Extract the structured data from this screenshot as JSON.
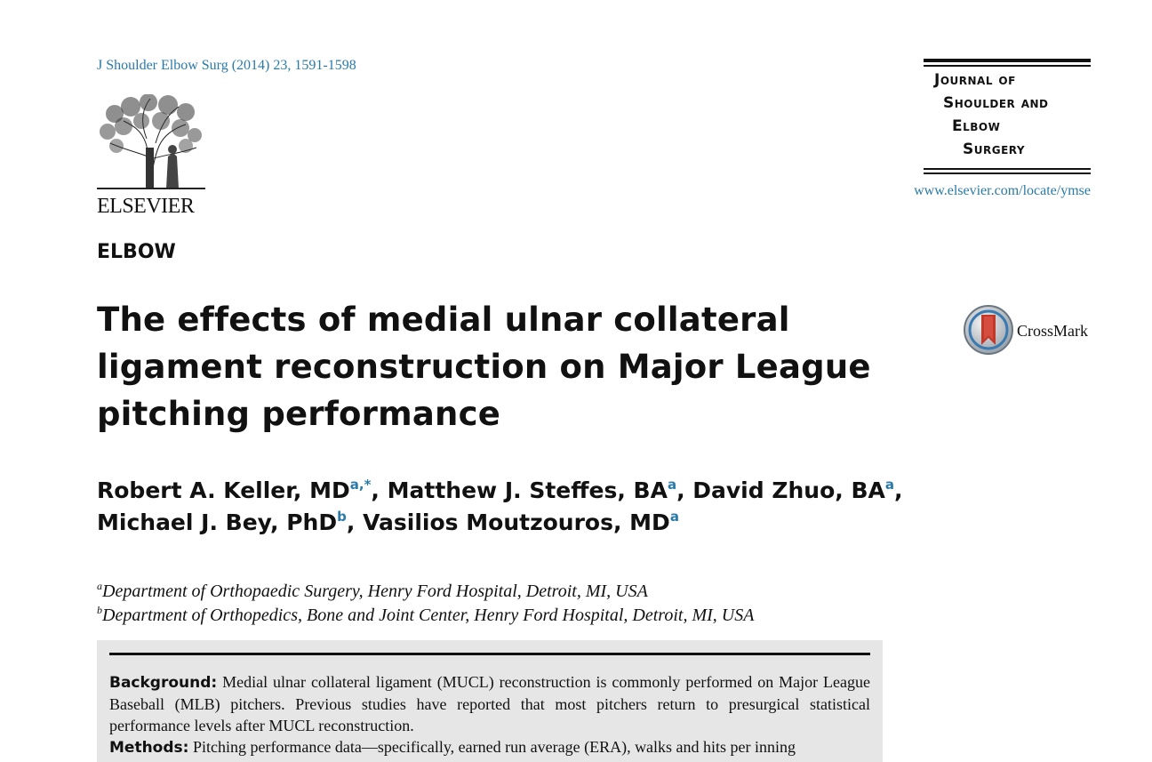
{
  "header": {
    "citation": "J Shoulder Elbow Surg (2014) 23, 1591-1598",
    "publisher_logo_icon": "elsevier-tree-icon",
    "publisher_name": "ELSEVIER",
    "journal_logo": {
      "line1": "Journal of",
      "line2": "Shoulder and",
      "line3": "Elbow",
      "line4": "Surgery"
    },
    "journal_url": "www.elsevier.com/locate/ymse"
  },
  "article": {
    "section": "ELBOW",
    "title": "The effects of medial ulnar collateral ligament reconstruction on Major League pitching performance",
    "crossmark_label": "CrossMark",
    "crossmark_icon": "crossmark-icon",
    "authors": [
      {
        "name": "Robert A. Keller, MD",
        "sup": "a,*",
        "sep": ", "
      },
      {
        "name": "Matthew J. Steffes, BA",
        "sup": "a",
        "sep": ", "
      },
      {
        "name": "David Zhuo, BA",
        "sup": "a",
        "sep": ","
      },
      {
        "name": "Michael J. Bey, PhD",
        "sup": "b",
        "sep": ", "
      },
      {
        "name": "Vasilios Moutzouros, MD",
        "sup": "a",
        "sep": ""
      }
    ],
    "affiliations": [
      {
        "mark": "a",
        "text": "Department of Orthopaedic Surgery, Henry Ford Hospital, Detroit, MI, USA"
      },
      {
        "mark": "b",
        "text": "Department of Orthopedics, Bone and Joint Center, Henry Ford Hospital, Detroit, MI, USA"
      }
    ],
    "abstract": {
      "background_label": "Background:",
      "background_text": "Medial ulnar collateral ligament (MUCL) reconstruction is commonly performed on Major League Baseball (MLB) pitchers. Previous studies have reported that most pitchers return to presurgical statistical performance levels after MUCL reconstruction.",
      "methods_label": "Methods:",
      "methods_text": "Pitching performance data—specifically, earned run average (ERA), walks and hits per inning"
    }
  },
  "colors": {
    "link_blue": "#2a7aa8",
    "abstract_bg": "#e6e6e6",
    "crossmark_red": "#c0392b"
  }
}
